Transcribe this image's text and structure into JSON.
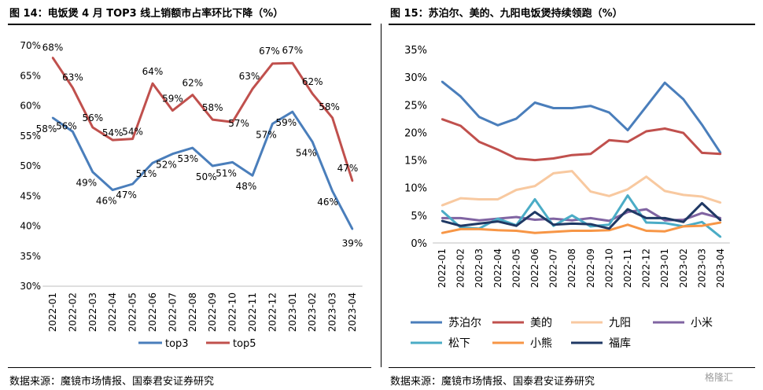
{
  "left": {
    "title": "图 14：电饭煲 4 月 TOP3 线上销额市占率环比下降（%）",
    "source": "数据来源：魔镜市场情报、国泰君安证券研究"
  },
  "right": {
    "title": "图 15：苏泊尔、美的、九阳电饭煲持续领跑（%）",
    "source": "数据来源：魔镜市场情报、国泰君安证券研究"
  },
  "watermark": "格隆汇",
  "chart_data": [
    {
      "type": "line",
      "categories": [
        "2022-01",
        "2022-02",
        "2022-03",
        "2022-04",
        "2022-05",
        "2022-06",
        "2022-07",
        "2022-08",
        "2022-09",
        "2022-10",
        "2022-11",
        "2022-12",
        "2023-01",
        "2023-02",
        "2023-03",
        "2023-04"
      ],
      "ylim": [
        30,
        70
      ],
      "yticks": [
        "30%",
        "35%",
        "40%",
        "45%",
        "50%",
        "55%",
        "60%",
        "65%",
        "70%"
      ],
      "series": [
        {
          "name": "top3",
          "color": "#4a7ebb",
          "values": [
            58,
            55.7,
            49,
            46,
            47,
            50.5,
            52,
            53,
            50,
            50.6,
            48.4,
            57,
            59,
            54,
            45.8,
            39.5
          ],
          "labels": [
            "58%",
            "56%",
            "49%",
            "46%",
            "47%",
            "51%",
            "52%",
            "53%",
            "50%",
            "51%",
            "48%",
            "57%",
            "59%",
            "54%",
            "46%",
            "39%"
          ]
        },
        {
          "name": "top5",
          "color": "#c0504d",
          "values": [
            68,
            63,
            56.4,
            54.3,
            54.5,
            63.7,
            59.2,
            61.8,
            57.7,
            57.3,
            62.8,
            67,
            67.1,
            62,
            58,
            47.5
          ],
          "labels": [
            "68%",
            "63%",
            "56%",
            "54%",
            "54%",
            "64%",
            "59%",
            "62%",
            "58%",
            "57%",
            "63%",
            "67%",
            "67%",
            "62%",
            "58%",
            "47%"
          ]
        }
      ]
    },
    {
      "type": "line",
      "categories": [
        "2022-01",
        "2022-02",
        "2022-03",
        "2022-04",
        "2022-05",
        "2022-06",
        "2022-07",
        "2022-08",
        "2022-09",
        "2022-10",
        "2022-11",
        "2022-12",
        "2023-01",
        "2023-02",
        "2023-03",
        "2023-04"
      ],
      "ylim": [
        0,
        35
      ],
      "yticks": [
        "0%",
        "5%",
        "10%",
        "15%",
        "20%",
        "25%",
        "30%",
        "35%"
      ],
      "series": [
        {
          "name": "苏泊尔",
          "color": "#4a7ebb",
          "values": [
            29.2,
            26.5,
            22.8,
            21.3,
            22.5,
            25.4,
            24.4,
            24.4,
            24.8,
            23.6,
            20.4,
            24.7,
            29,
            26,
            21.4,
            16.3
          ]
        },
        {
          "name": "美的",
          "color": "#c0504d",
          "values": [
            22.4,
            21.2,
            18.3,
            16.9,
            15.3,
            15,
            15.3,
            15.9,
            16.1,
            18.6,
            18.3,
            20.2,
            20.7,
            19.9,
            16.3,
            16.1
          ]
        },
        {
          "name": "九阳",
          "color": "#f8c9a0",
          "values": [
            6.8,
            8.1,
            7.9,
            7.9,
            9.6,
            10.3,
            12.6,
            13,
            9.3,
            8.5,
            9.7,
            12,
            9.4,
            8.7,
            8.4,
            7.3
          ]
        },
        {
          "name": "小米",
          "color": "#8064a2",
          "values": [
            4.5,
            4.5,
            4.1,
            4.4,
            4.7,
            4.2,
            4.4,
            4.1,
            4.5,
            4,
            5.6,
            6.1,
            4.1,
            4.2,
            5.4,
            4.5
          ]
        },
        {
          "name": "松下",
          "color": "#4bacc6",
          "values": [
            5.8,
            2.8,
            2.6,
            4.4,
            3.2,
            7.9,
            3.1,
            5,
            3,
            3.3,
            8.6,
            3.7,
            3.6,
            3,
            3.8,
            1.1
          ]
        },
        {
          "name": "小熊",
          "color": "#f79646",
          "values": [
            1.8,
            2.5,
            2.5,
            2.3,
            2.2,
            1.8,
            2,
            2.2,
            2.2,
            2.3,
            3.3,
            2.2,
            2.1,
            3,
            3.1,
            3.7
          ]
        },
        {
          "name": "福库",
          "color": "#1f3864",
          "values": [
            4,
            3.1,
            3.5,
            3.9,
            3.1,
            5.6,
            3.3,
            3.5,
            3.4,
            2.6,
            6.1,
            4.5,
            4.5,
            3.8,
            7.2,
            4.1
          ]
        }
      ]
    }
  ]
}
